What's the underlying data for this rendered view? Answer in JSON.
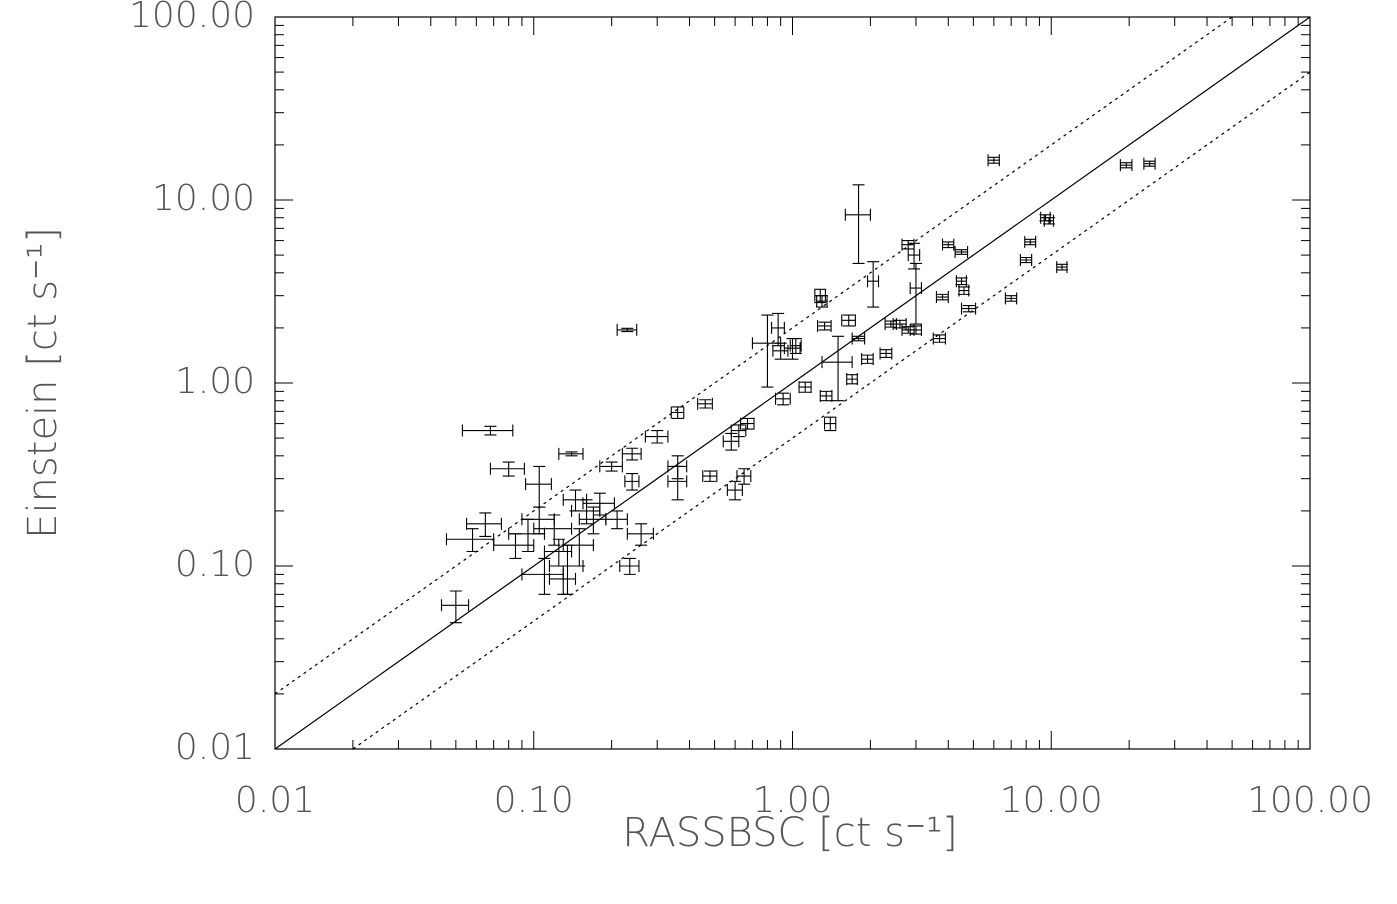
{
  "chart_data": {
    "type": "scatter",
    "x_label": "RASSBSC [ct s⁻¹]",
    "y_label": "Einstein [ct s⁻¹]",
    "log_x": true,
    "log_y": true,
    "xlim": [
      0.01,
      100
    ],
    "ylim": [
      0.01,
      100
    ],
    "xticks": [
      0.01,
      {
        "value": 0.1,
        "label": "0.10"
      },
      {
        "value": 1,
        "label": "1.00"
      },
      {
        "value": 10,
        "label": "10.00"
      },
      {
        "value": 100,
        "label": "100.00"
      }
    ],
    "yticks": [
      0.01,
      {
        "value": 0.1,
        "label": "0.10"
      },
      {
        "value": 1,
        "label": "1.00"
      },
      {
        "value": 10,
        "label": "10.00"
      },
      {
        "value": 100,
        "label": "100.00"
      }
    ],
    "minor_ticks": true,
    "reference_lines": [
      {
        "factor": 1,
        "dashed": false
      },
      {
        "factor": 2,
        "dashed": true
      },
      {
        "factor": 0.5,
        "dashed": true
      }
    ],
    "series": [
      {
        "color": "#000000",
        "x": [
          0.05,
          0.068,
          0.08,
          0.065,
          0.058,
          0.085,
          0.095,
          0.105,
          0.105,
          0.11,
          0.12,
          0.125,
          0.13,
          0.135,
          0.14,
          0.145,
          0.15,
          0.16,
          0.17,
          0.18,
          0.2,
          0.21,
          0.23,
          0.235,
          0.24,
          0.24,
          0.26,
          0.3,
          0.36,
          0.36,
          0.36,
          0.46,
          0.48,
          0.58,
          0.6,
          0.62,
          0.65,
          0.67,
          0.8,
          0.88,
          0.9,
          0.92,
          1.0,
          1.03,
          1.12,
          1.28,
          1.3,
          1.33,
          1.35,
          1.4,
          1.5,
          1.65,
          1.7,
          1.8,
          1.8,
          1.95,
          2.05,
          2.3,
          2.4,
          2.6,
          2.8,
          2.8,
          2.95,
          3.0,
          3.0,
          3.7,
          3.8,
          4.0,
          4.5,
          4.5,
          4.6,
          4.8,
          6.0,
          7.0,
          8.0,
          8.3,
          9.5,
          9.8,
          11.0,
          19.5,
          24
        ],
        "y": [
          0.061,
          0.55,
          0.34,
          0.17,
          0.14,
          0.13,
          0.15,
          0.28,
          0.18,
          0.09,
          0.16,
          0.12,
          0.085,
          0.1,
          0.41,
          0.23,
          0.13,
          0.2,
          0.18,
          0.22,
          0.35,
          0.18,
          1.95,
          0.1,
          0.41,
          0.29,
          0.15,
          0.51,
          0.69,
          0.35,
          0.29,
          0.77,
          0.31,
          0.48,
          0.26,
          0.55,
          0.31,
          0.6,
          1.65,
          2.0,
          1.5,
          0.82,
          1.55,
          1.6,
          0.95,
          3.0,
          2.8,
          2.05,
          0.85,
          0.6,
          1.3,
          2.2,
          1.05,
          1.75,
          8.3,
          1.35,
          3.6,
          1.45,
          2.1,
          2.1,
          5.7,
          1.95,
          5.0,
          3.3,
          1.95,
          1.75,
          2.95,
          5.7,
          5.2,
          3.6,
          3.2,
          2.55,
          16.5,
          2.9,
          4.7,
          5.9,
          8.0,
          7.7,
          4.3,
          15.5,
          15.8
        ],
        "xerr": [
          0.006,
          0.015,
          0.012,
          0.01,
          0.012,
          0.015,
          0.015,
          0.012,
          0.015,
          0.02,
          0.02,
          0.015,
          0.015,
          0.02,
          0.015,
          0.015,
          0.02,
          0.02,
          0.02,
          0.025,
          0.02,
          0.02,
          0.02,
          0.02,
          0.02,
          0.015,
          0.03,
          0.03,
          0.02,
          0.03,
          0.03,
          0.03,
          0.03,
          0.04,
          0.04,
          0.04,
          0.04,
          0.04,
          0.1,
          0.05,
          0.06,
          0.06,
          0.07,
          0.05,
          0.06,
          0.06,
          0.06,
          0.08,
          0.07,
          0.07,
          0.2,
          0.1,
          0.08,
          0.1,
          0.2,
          0.1,
          0.1,
          0.12,
          0.12,
          0.15,
          0.15,
          0.15,
          0.15,
          0.15,
          0.15,
          0.2,
          0.2,
          0.2,
          0.25,
          0.2,
          0.2,
          0.3,
          0.3,
          0.35,
          0.4,
          0.4,
          0.4,
          0.4,
          0.5,
          1.0,
          1.2
        ],
        "yerr": [
          0.012,
          0.03,
          0.03,
          0.025,
          0.02,
          0.02,
          0.03,
          0.07,
          0.03,
          0.02,
          0.03,
          0.02,
          0.015,
          0.03,
          0.01,
          0.03,
          0.03,
          0.03,
          0.03,
          0.03,
          0.02,
          0.02,
          0.04,
          0.01,
          0.03,
          0.03,
          0.02,
          0.04,
          0.05,
          0.05,
          0.06,
          0.04,
          0.02,
          0.05,
          0.03,
          0.04,
          0.03,
          0.04,
          0.7,
          0.4,
          0.15,
          0.06,
          0.2,
          0.15,
          0.06,
          0.25,
          0.2,
          0.1,
          0.05,
          0.05,
          0.5,
          0.15,
          0.06,
          0.05,
          3.8,
          0.07,
          1.0,
          0.07,
          0.08,
          0.1,
          0.3,
          0.08,
          0.8,
          1.2,
          0.1,
          0.08,
          0.1,
          0.2,
          0.15,
          0.15,
          0.15,
          0.1,
          0.6,
          0.1,
          0.15,
          0.2,
          0.3,
          0.3,
          0.15,
          0.5,
          0.5
        ]
      }
    ]
  }
}
